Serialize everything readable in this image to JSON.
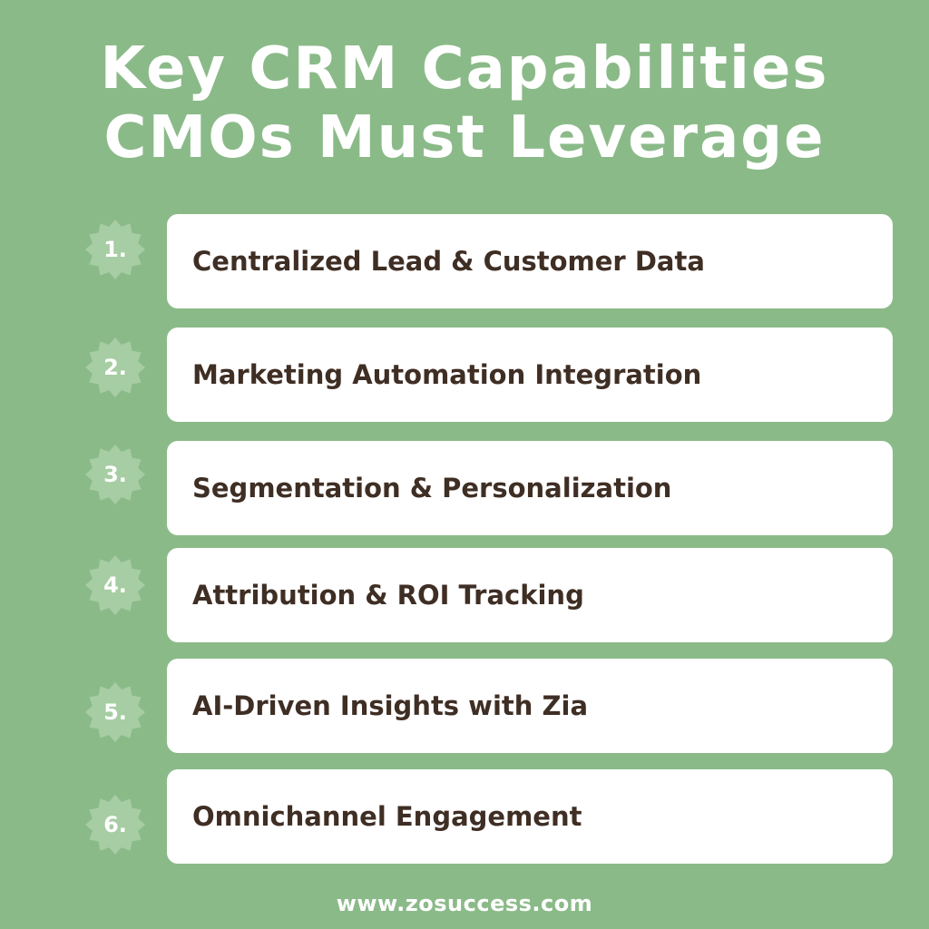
{
  "title": {
    "line1": "Key CRM Capabilities",
    "line2": "CMOs Must Leverage"
  },
  "items": [
    {
      "number": "1.",
      "label": "Centralized Lead & Customer Data"
    },
    {
      "number": "2.",
      "label": "Marketing Automation Integration"
    },
    {
      "number": "3.",
      "label": "Segmentation & Personalization"
    },
    {
      "number": "4.",
      "label": "Attribution & ROI Tracking"
    },
    {
      "number": "5.",
      "label": "AI-Driven Insights with Zia"
    },
    {
      "number": "6.",
      "label": "Omnichannel Engagement"
    }
  ],
  "footer": {
    "url": "www.zosuccess.com"
  },
  "colors": {
    "background": "#8bba89",
    "badge": "#a6cda3",
    "card": "#ffffff",
    "text_dark": "#3f2e24",
    "text_light": "#ffffff"
  }
}
